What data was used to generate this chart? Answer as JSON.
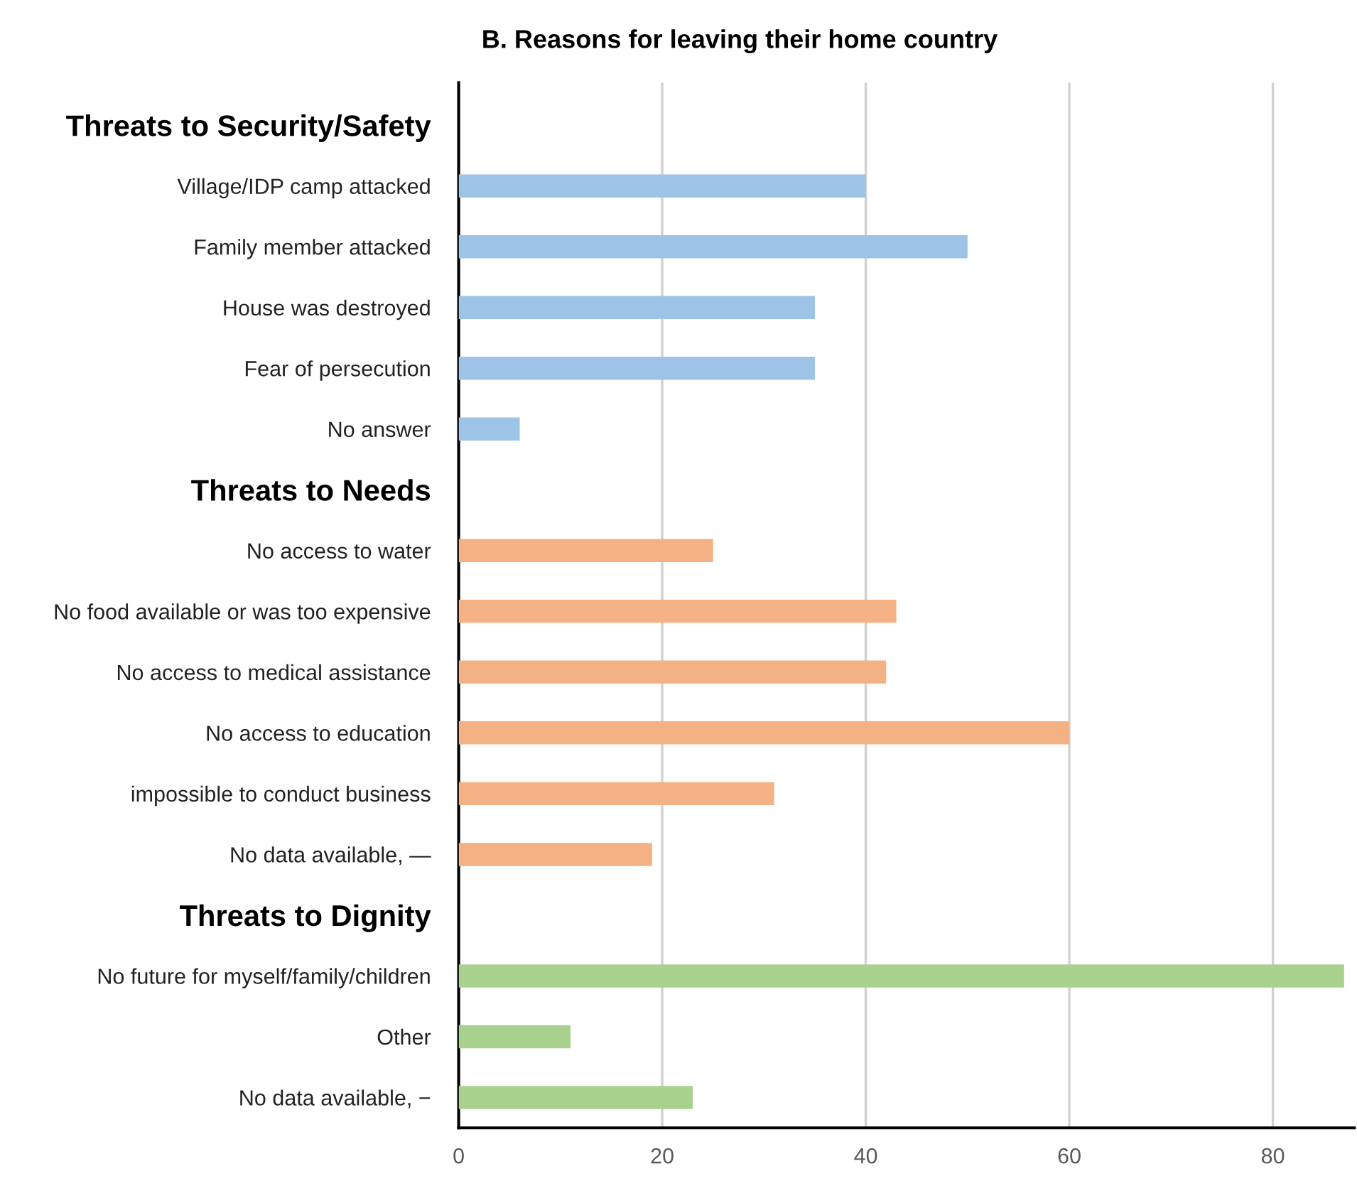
{
  "chart_data": {
    "type": "bar",
    "orientation": "horizontal",
    "title": "B. Reasons for leaving their home country",
    "categories": [
      "Threats to Security/Safety",
      "Village/IDP camp attacked",
      "Family member attacked",
      "House was destroyed",
      "Fear of persecution",
      "No answer",
      "Threats to Needs",
      "No access to water",
      "No food available or was too expensive",
      "No access to medical assistance",
      "No access to education",
      "impossible to conduct business",
      "No data available, —",
      "Threats to Dignity",
      "No future for myself/family/children",
      "Other",
      "No data available, −"
    ],
    "values": [
      null,
      40,
      50,
      35,
      35,
      6,
      null,
      25,
      43,
      42,
      60,
      31,
      19,
      null,
      87,
      11,
      23
    ],
    "colors": [
      null,
      "#9dc3e6",
      "#9dc3e6",
      "#9dc3e6",
      "#9dc3e6",
      "#9dc3e6",
      null,
      "#f4b183",
      "#f4b183",
      "#f4b183",
      "#f4b183",
      "#f4b183",
      "#f4b183",
      null,
      "#a9d18e",
      "#a9d18e",
      "#a9d18e"
    ],
    "xlim": [
      0,
      88
    ],
    "xticks": [
      0,
      20,
      40,
      60,
      80
    ],
    "grid": "x",
    "legend": false
  }
}
